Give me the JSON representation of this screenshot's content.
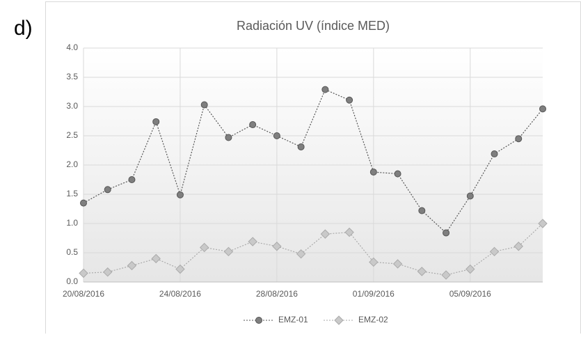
{
  "panel_label": "d)",
  "chart_data": {
    "type": "line",
    "title": "Radiación  UV (índice MED)",
    "categories": [
      "20/08/2016",
      null,
      null,
      null,
      "24/08/2016",
      null,
      null,
      null,
      "28/08/2016",
      null,
      null,
      null,
      "01/09/2016",
      null,
      null,
      null,
      "05/09/2016",
      null,
      null,
      null
    ],
    "series": [
      {
        "name": "EMZ-01",
        "color": "#7f7f7f",
        "marker": "circle",
        "values": [
          1.35,
          1.58,
          1.75,
          2.74,
          1.49,
          3.03,
          2.47,
          2.69,
          2.5,
          2.31,
          3.29,
          3.11,
          1.88,
          1.85,
          1.22,
          0.84,
          1.47,
          2.19,
          2.45,
          2.96
        ]
      },
      {
        "name": "EMZ-02",
        "color": "#c9c9c9",
        "marker": "diamond",
        "values": [
          0.15,
          0.17,
          0.28,
          0.4,
          0.22,
          0.59,
          0.52,
          0.69,
          0.61,
          0.48,
          0.82,
          0.85,
          0.34,
          0.31,
          0.18,
          0.12,
          0.22,
          0.52,
          0.61,
          1.0
        ]
      }
    ],
    "ylim": [
      0,
      4
    ],
    "yticks": [
      {
        "value": 0,
        "label": "0.0"
      },
      0.5,
      {
        "value": 1,
        "label": "1.0"
      },
      1.5,
      {
        "value": 2,
        "label": "2.0"
      },
      2.5,
      {
        "value": 3,
        "label": "3.0"
      },
      3.5,
      {
        "value": 4,
        "label": "4.0"
      }
    ],
    "grid": true,
    "legend": "bottom"
  }
}
